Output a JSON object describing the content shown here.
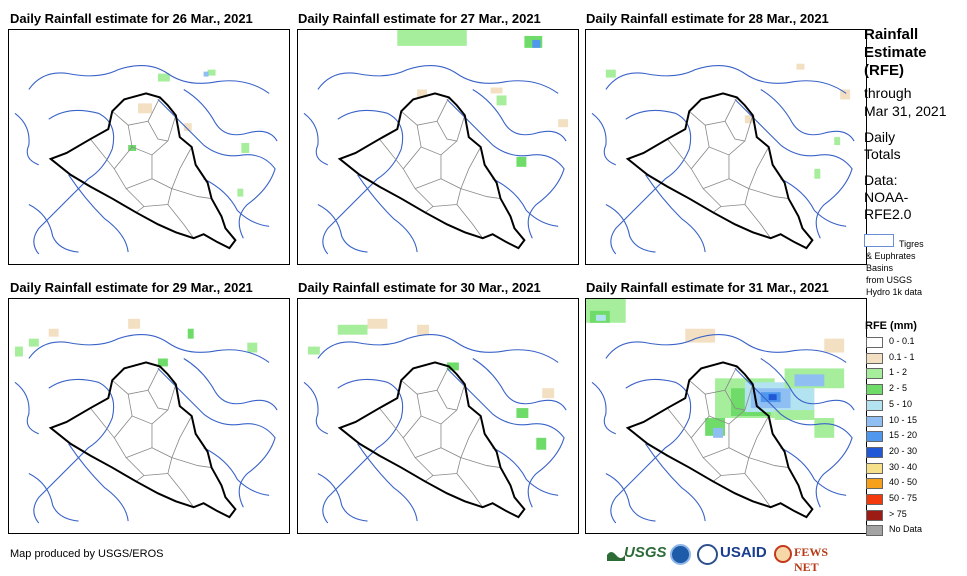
{
  "panels": [
    {
      "title": "Daily Rainfall estimate for 26 Mar., 2021"
    },
    {
      "title": "Daily Rainfall estimate for 27 Mar., 2021"
    },
    {
      "title": "Daily Rainfall estimate for 28 Mar., 2021"
    },
    {
      "title": "Daily Rainfall estimate for 29 Mar., 2021"
    },
    {
      "title": "Daily Rainfall estimate for 30 Mar., 2021"
    },
    {
      "title": "Daily Rainfall estimate for 31 Mar., 2021"
    }
  ],
  "legend": {
    "heading_1": "Rainfall",
    "heading_2": "Estimate",
    "heading_3": "(RFE)",
    "through": "through",
    "date": "Mar 31, 2021",
    "daily": "Daily",
    "totals": "Totals",
    "data_label": "Data:",
    "source_1": "NOAA-",
    "source_2": "RFE2.0",
    "basin_1": "Tigres",
    "basin_2": "& Euphrates",
    "basin_3": "Basins",
    "basin_4": "from USGS",
    "basin_5": "Hydro 1k data",
    "rfe_title": "RFE (mm)",
    "classes": [
      {
        "label": "0 - 0.1",
        "color": "#ffffff"
      },
      {
        "label": "0.1 - 1",
        "color": "#f3dfc2"
      },
      {
        "label": "1 - 2",
        "color": "#a6ee9c"
      },
      {
        "label": "2 - 5",
        "color": "#6fdc6a"
      },
      {
        "label": "5 - 10",
        "color": "#b3e3f0"
      },
      {
        "label": "10 - 15",
        "color": "#8fbff2"
      },
      {
        "label": "15 - 20",
        "color": "#4f98ee"
      },
      {
        "label": "20 - 30",
        "color": "#2158d6"
      },
      {
        "label": "30 - 40",
        "color": "#f7e08a"
      },
      {
        "label": "40 - 50",
        "color": "#f6a01c"
      },
      {
        "label": "50 - 75",
        "color": "#f23a0d"
      },
      {
        "label": "> 75",
        "color": "#9c1c15"
      },
      {
        "label": "No Data",
        "color": "#a3a3a3"
      }
    ]
  },
  "credit": "Map produced by USGS/EROS",
  "logos": {
    "usgs": "USGS",
    "usaid": "USAID",
    "fewsnet": "FEWS NET"
  }
}
